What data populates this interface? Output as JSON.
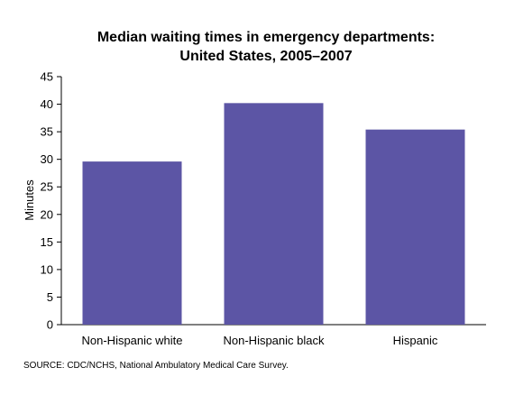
{
  "chart_data": {
    "type": "bar",
    "title_line1": "Median waiting times in emergency departments:",
    "title_line2": "United States, 2005–2007",
    "categories": [
      "Non-Hispanic white",
      "Non-Hispanic black",
      "Hispanic"
    ],
    "values": [
      29.6,
      40.2,
      35.4
    ],
    "ylabel": "Minutes",
    "xlabel": "",
    "ylim": [
      0,
      45
    ],
    "yticks": [
      0,
      5,
      10,
      15,
      20,
      25,
      30,
      35,
      40,
      45
    ],
    "grid": false,
    "bar_color": "#5c55a5"
  },
  "source": "SOURCE: CDC/NCHS, National Ambulatory Medical Care Survey."
}
